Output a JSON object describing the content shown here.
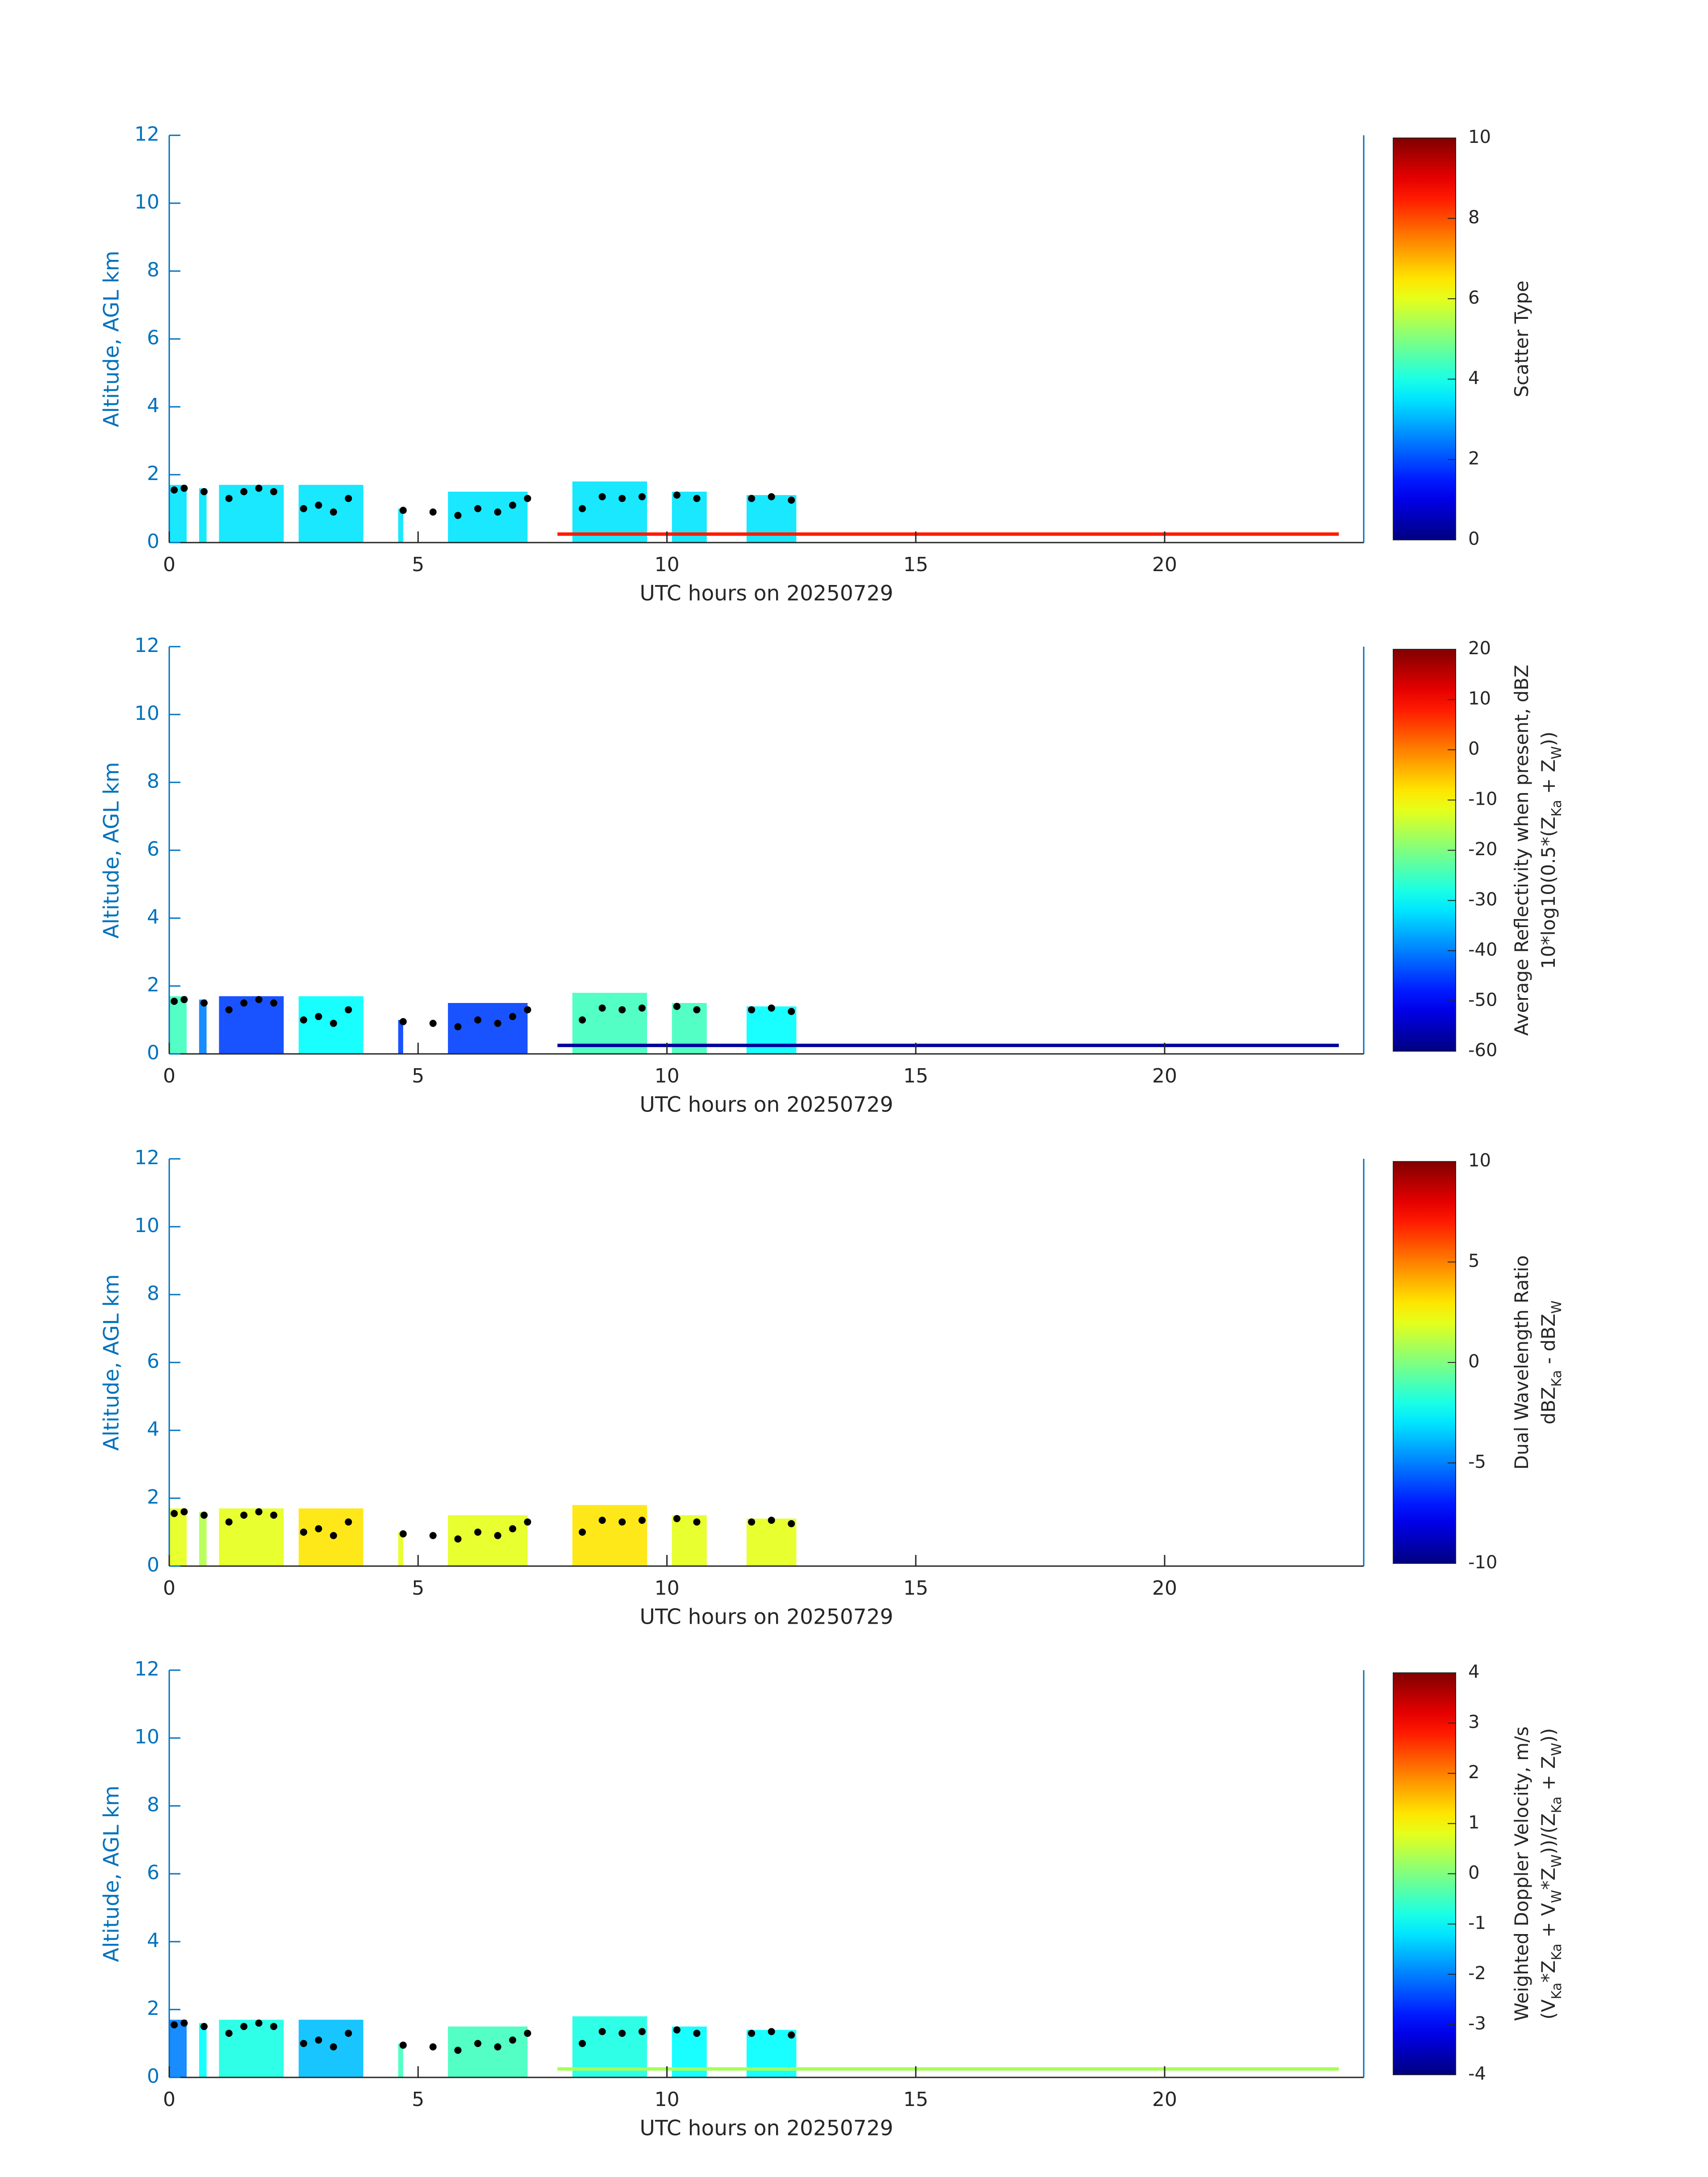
{
  "chart_data": [
    {
      "type": "curtain",
      "xlabel": "UTC hours on 20250729",
      "ylabel": "Altitude, AGL km",
      "xlim": [
        0,
        24
      ],
      "xticks": [
        0,
        5,
        10,
        15,
        20
      ],
      "ylim": [
        0,
        12
      ],
      "yticks": [
        0,
        2,
        4,
        6,
        8,
        10,
        12
      ],
      "colorbar": {
        "colormap": "jet",
        "clim": [
          0,
          10
        ],
        "ticks": [
          0,
          2,
          4,
          6,
          8,
          10
        ],
        "label_lines": [
          [
            {
              "text": "Scatter Type"
            }
          ]
        ]
      },
      "echoes": [
        {
          "x": [
            0,
            0.35
          ],
          "top": 1.7,
          "color_value": 3.5
        },
        {
          "x": [
            0.6,
            0.75
          ],
          "top": 1.6,
          "color_value": 3.5
        },
        {
          "x": [
            1.0,
            2.3
          ],
          "top": 1.7,
          "color_value": 3.5
        },
        {
          "x": [
            2.6,
            3.9
          ],
          "top": 1.7,
          "color_value": 3.5
        },
        {
          "x": [
            4.6,
            4.7
          ],
          "top": 1.0,
          "color_value": 3.5
        },
        {
          "x": [
            5.6,
            7.2
          ],
          "top": 1.5,
          "color_value": 3.5
        },
        {
          "x": [
            8.1,
            9.6
          ],
          "top": 1.8,
          "color_value": 3.5
        },
        {
          "x": [
            10.1,
            10.8
          ],
          "top": 1.5,
          "color_value": 3.5
        },
        {
          "x": [
            11.6,
            12.6
          ],
          "top": 1.4,
          "color_value": 3.5
        }
      ],
      "surface": {
        "x": [
          7.8,
          23.5
        ],
        "y": [
          0.2,
          0.3
        ],
        "color_value": 8.5
      },
      "cloud_top": {
        "color": "#000000",
        "x": [
          0.1,
          0.3,
          0.7,
          1.2,
          1.5,
          1.8,
          2.1,
          2.7,
          3.0,
          3.3,
          3.6,
          4.7,
          5.3,
          5.8,
          6.2,
          6.6,
          6.9,
          7.2,
          8.3,
          8.7,
          9.1,
          9.5,
          10.2,
          10.6,
          11.7,
          12.1,
          12.5
        ],
        "y": [
          1.55,
          1.6,
          1.5,
          1.3,
          1.5,
          1.6,
          1.5,
          1.0,
          1.1,
          0.9,
          1.3,
          0.95,
          0.9,
          0.8,
          1.0,
          0.9,
          1.1,
          1.3,
          1.0,
          1.35,
          1.3,
          1.35,
          1.4,
          1.3,
          1.3,
          1.35,
          1.25
        ]
      }
    },
    {
      "type": "curtain",
      "xlabel": "UTC hours on 20250729",
      "ylabel": "Altitude, AGL km",
      "xlim": [
        0,
        24
      ],
      "xticks": [
        0,
        5,
        10,
        15,
        20
      ],
      "ylim": [
        0,
        12
      ],
      "yticks": [
        0,
        2,
        4,
        6,
        8,
        10,
        12
      ],
      "colorbar": {
        "colormap": "jet",
        "clim": [
          -60,
          20
        ],
        "ticks": [
          -60,
          -50,
          -40,
          -30,
          -20,
          -10,
          0,
          10,
          20
        ],
        "label_lines": [
          [
            {
              "text": "Average Reflectivity when present, dBZ"
            }
          ],
          [
            {
              "text": "10*log10(0.5*(Z"
            },
            {
              "text": "Ka",
              "sub": true
            },
            {
              "text": " + Z"
            },
            {
              "text": "W",
              "sub": true
            },
            {
              "text": "))"
            }
          ]
        ]
      },
      "echoes": [
        {
          "x": [
            0,
            0.35
          ],
          "top": 1.7,
          "color_value": -25
        },
        {
          "x": [
            0.6,
            0.75
          ],
          "top": 1.6,
          "color_value": -40
        },
        {
          "x": [
            1.0,
            2.3
          ],
          "top": 1.7,
          "color_value": -45
        },
        {
          "x": [
            2.6,
            3.9
          ],
          "top": 1.7,
          "color_value": -30
        },
        {
          "x": [
            4.6,
            4.7
          ],
          "top": 1.0,
          "color_value": -45
        },
        {
          "x": [
            5.6,
            7.2
          ],
          "top": 1.5,
          "color_value": -45
        },
        {
          "x": [
            8.1,
            9.6
          ],
          "top": 1.8,
          "color_value": -25
        },
        {
          "x": [
            10.1,
            10.8
          ],
          "top": 1.5,
          "color_value": -25
        },
        {
          "x": [
            11.6,
            12.6
          ],
          "top": 1.4,
          "color_value": -30
        }
      ],
      "surface": {
        "x": [
          7.8,
          23.5
        ],
        "y": [
          0.2,
          0.3
        ],
        "color_value": -58
      },
      "cloud_top": {
        "color": "#000000",
        "x": [
          0.1,
          0.3,
          0.7,
          1.2,
          1.5,
          1.8,
          2.1,
          2.7,
          3.0,
          3.3,
          3.6,
          4.7,
          5.3,
          5.8,
          6.2,
          6.6,
          6.9,
          7.2,
          8.3,
          8.7,
          9.1,
          9.5,
          10.2,
          10.6,
          11.7,
          12.1,
          12.5
        ],
        "y": [
          1.55,
          1.6,
          1.5,
          1.3,
          1.5,
          1.6,
          1.5,
          1.0,
          1.1,
          0.9,
          1.3,
          0.95,
          0.9,
          0.8,
          1.0,
          0.9,
          1.1,
          1.3,
          1.0,
          1.35,
          1.3,
          1.35,
          1.4,
          1.3,
          1.3,
          1.35,
          1.25
        ]
      }
    },
    {
      "type": "curtain",
      "xlabel": "UTC hours on 20250729",
      "ylabel": "Altitude, AGL km",
      "xlim": [
        0,
        24
      ],
      "xticks": [
        0,
        5,
        10,
        15,
        20
      ],
      "ylim": [
        0,
        12
      ],
      "yticks": [
        0,
        2,
        4,
        6,
        8,
        10,
        12
      ],
      "colorbar": {
        "colormap": "jet",
        "clim": [
          -10,
          10
        ],
        "ticks": [
          -10,
          -5,
          0,
          5,
          10
        ],
        "label_lines": [
          [
            {
              "text": "Dual Wavelength Ratio"
            }
          ],
          [
            {
              "text": "dBZ"
            },
            {
              "text": "Ka",
              "sub": true
            },
            {
              "text": " - dBZ"
            },
            {
              "text": "W",
              "sub": true
            }
          ]
        ]
      },
      "echoes": [
        {
          "x": [
            0,
            0.35
          ],
          "top": 1.7,
          "color_value": 2
        },
        {
          "x": [
            0.6,
            0.75
          ],
          "top": 1.6,
          "color_value": 1
        },
        {
          "x": [
            1.0,
            2.3
          ],
          "top": 1.7,
          "color_value": 2
        },
        {
          "x": [
            2.6,
            3.9
          ],
          "top": 1.7,
          "color_value": 3
        },
        {
          "x": [
            4.6,
            4.7
          ],
          "top": 1.0,
          "color_value": 2
        },
        {
          "x": [
            5.6,
            7.2
          ],
          "top": 1.5,
          "color_value": 2
        },
        {
          "x": [
            8.1,
            9.6
          ],
          "top": 1.8,
          "color_value": 3
        },
        {
          "x": [
            10.1,
            10.8
          ],
          "top": 1.5,
          "color_value": 2
        },
        {
          "x": [
            11.6,
            12.6
          ],
          "top": 1.4,
          "color_value": 2
        }
      ],
      "cloud_top": {
        "color": "#000000",
        "x": [
          0.1,
          0.3,
          0.7,
          1.2,
          1.5,
          1.8,
          2.1,
          2.7,
          3.0,
          3.3,
          3.6,
          4.7,
          5.3,
          5.8,
          6.2,
          6.6,
          6.9,
          7.2,
          8.3,
          8.7,
          9.1,
          9.5,
          10.2,
          10.6,
          11.7,
          12.1,
          12.5
        ],
        "y": [
          1.55,
          1.6,
          1.5,
          1.3,
          1.5,
          1.6,
          1.5,
          1.0,
          1.1,
          0.9,
          1.3,
          0.95,
          0.9,
          0.8,
          1.0,
          0.9,
          1.1,
          1.3,
          1.0,
          1.35,
          1.3,
          1.35,
          1.4,
          1.3,
          1.3,
          1.35,
          1.25
        ]
      }
    },
    {
      "type": "curtain",
      "xlabel": "UTC hours on 20250729",
      "ylabel": "Altitude, AGL km",
      "xlim": [
        0,
        24
      ],
      "xticks": [
        0,
        5,
        10,
        15,
        20
      ],
      "ylim": [
        0,
        12
      ],
      "yticks": [
        0,
        2,
        4,
        6,
        8,
        10,
        12
      ],
      "colorbar": {
        "colormap": "jet",
        "clim": [
          -4,
          4
        ],
        "ticks": [
          -4,
          -3,
          -2,
          -1,
          0,
          1,
          2,
          3,
          4
        ],
        "label_lines": [
          [
            {
              "text": "Weighted Doppler Velocity, m/s"
            }
          ],
          [
            {
              "text": "(V"
            },
            {
              "text": "Ka",
              "sub": true
            },
            {
              "text": "*Z"
            },
            {
              "text": "Ka",
              "sub": true
            },
            {
              "text": " + V"
            },
            {
              "text": "W",
              "sub": true
            },
            {
              "text": "*Z"
            },
            {
              "text": "W",
              "sub": true
            },
            {
              "text": "))/(Z"
            },
            {
              "text": "Ka",
              "sub": true
            },
            {
              "text": " + Z"
            },
            {
              "text": "W",
              "sub": true
            },
            {
              "text": "))"
            }
          ]
        ]
      },
      "echoes": [
        {
          "x": [
            0,
            0.35
          ],
          "top": 1.7,
          "color_value": -2
        },
        {
          "x": [
            0.6,
            0.75
          ],
          "top": 1.6,
          "color_value": -1
        },
        {
          "x": [
            1.0,
            2.3
          ],
          "top": 1.7,
          "color_value": -0.8
        },
        {
          "x": [
            2.6,
            3.9
          ],
          "top": 1.7,
          "color_value": -1.5
        },
        {
          "x": [
            4.6,
            4.7
          ],
          "top": 1.0,
          "color_value": -0.5
        },
        {
          "x": [
            5.6,
            7.2
          ],
          "top": 1.5,
          "color_value": -0.5
        },
        {
          "x": [
            8.1,
            9.6
          ],
          "top": 1.8,
          "color_value": -0.8
        },
        {
          "x": [
            10.1,
            10.8
          ],
          "top": 1.5,
          "color_value": -1
        },
        {
          "x": [
            11.6,
            12.6
          ],
          "top": 1.4,
          "color_value": -1
        }
      ],
      "surface": {
        "x": [
          7.8,
          23.5
        ],
        "y": [
          0.2,
          0.3
        ],
        "color_value": 0.3
      },
      "cloud_top": {
        "color": "#000000",
        "x": [
          0.1,
          0.3,
          0.7,
          1.2,
          1.5,
          1.8,
          2.1,
          2.7,
          3.0,
          3.3,
          3.6,
          4.7,
          5.3,
          5.8,
          6.2,
          6.6,
          6.9,
          7.2,
          8.3,
          8.7,
          9.1,
          9.5,
          10.2,
          10.6,
          11.7,
          12.1,
          12.5
        ],
        "y": [
          1.55,
          1.6,
          1.5,
          1.3,
          1.5,
          1.6,
          1.5,
          1.0,
          1.1,
          0.9,
          1.3,
          0.95,
          0.9,
          0.8,
          1.0,
          0.9,
          1.1,
          1.3,
          1.0,
          1.35,
          1.3,
          1.35,
          1.4,
          1.3,
          1.3,
          1.35,
          1.25
        ]
      }
    }
  ]
}
